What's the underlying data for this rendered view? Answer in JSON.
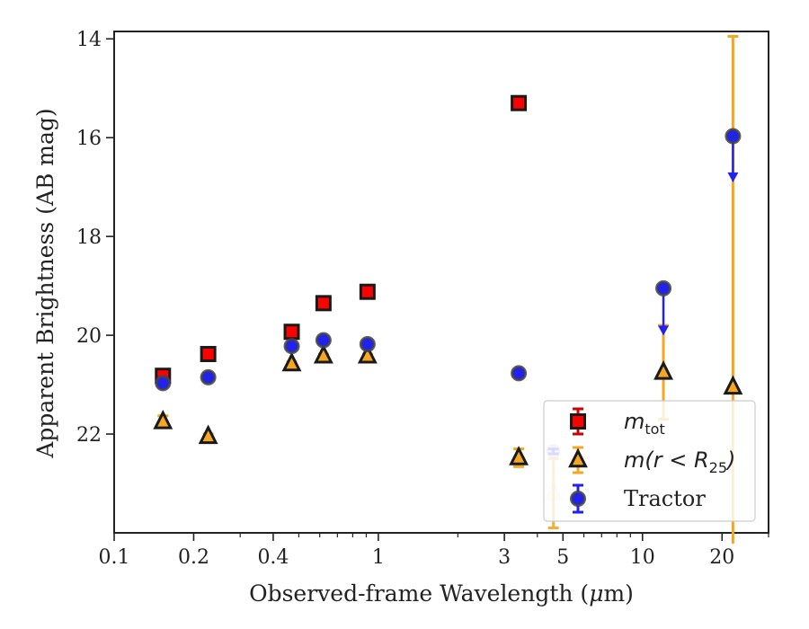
{
  "chart_data": {
    "type": "scatter",
    "xscale": "log",
    "yinverted": true,
    "xlabel": "Observed-frame Wavelength (μm)",
    "xlabel_parts": [
      "Observed-frame Wavelength (",
      "μ",
      "m)"
    ],
    "ylabel": "Apparent Brightness (AB mag)",
    "xlim": [
      0.1,
      30
    ],
    "ylim": [
      24.0,
      13.85
    ],
    "xticks": [
      {
        "value": 0.1,
        "label": "0.1"
      },
      {
        "value": 0.2,
        "label": "0.2"
      },
      {
        "value": 0.4,
        "label": "0.4"
      },
      {
        "value": 1,
        "label": "1"
      },
      {
        "value": 3,
        "label": "3"
      },
      {
        "value": 5,
        "label": "5"
      },
      {
        "value": 10,
        "label": "10"
      },
      {
        "value": 20,
        "label": "20"
      }
    ],
    "xminor": [
      0.3,
      0.5,
      0.6,
      0.7,
      0.8,
      0.9,
      2,
      4,
      6,
      7,
      8,
      9,
      30
    ],
    "yticks": [
      {
        "value": 14,
        "label": "14"
      },
      {
        "value": 16,
        "label": "16"
      },
      {
        "value": 18,
        "label": "18"
      },
      {
        "value": 20,
        "label": "20"
      },
      {
        "value": 22,
        "label": "22"
      }
    ],
    "series": [
      {
        "name": "m_tot",
        "marker": "square",
        "color": "#ff0000",
        "edge": "#1a1a1a",
        "points": [
          {
            "x": 0.153,
            "y": 20.82,
            "err": 0.08
          },
          {
            "x": 0.227,
            "y": 20.38,
            "err": 0.04
          },
          {
            "x": 0.47,
            "y": 19.93,
            "err": 0.03
          },
          {
            "x": 0.62,
            "y": 19.35,
            "err": 0.03
          },
          {
            "x": 0.91,
            "y": 19.12,
            "err": 0.03
          },
          {
            "x": 3.4,
            "y": 15.3,
            "err": 0.03
          }
        ]
      },
      {
        "name": "m(r<R25)",
        "marker": "triangle",
        "color": "#f5a623",
        "edge": "#1a1a1a",
        "points": [
          {
            "x": 0.153,
            "y": 21.75,
            "err": 0.12
          },
          {
            "x": 0.227,
            "y": 22.05,
            "err": 0.05
          },
          {
            "x": 0.47,
            "y": 20.58,
            "err": 0.04
          },
          {
            "x": 0.62,
            "y": 20.42,
            "err": 0.04
          },
          {
            "x": 0.91,
            "y": 20.42,
            "err": 0.04
          },
          {
            "x": 3.4,
            "y": 22.48,
            "err": 0.18
          },
          {
            "x": 4.6,
            "y": 23.2,
            "err": 0.7,
            "faded": true
          },
          {
            "x": 12.0,
            "y": 20.75,
            "err": 0.95
          },
          {
            "x": 22.0,
            "y": 21.05,
            "err": 7.1
          }
        ]
      },
      {
        "name": "Tractor",
        "marker": "circle",
        "color": "#2222ee",
        "edge": "#444444",
        "points": [
          {
            "x": 0.153,
            "y": 20.97,
            "err": 0.05
          },
          {
            "x": 0.227,
            "y": 20.85,
            "err": 0.05
          },
          {
            "x": 0.47,
            "y": 20.22,
            "err": 0.04
          },
          {
            "x": 0.62,
            "y": 20.1,
            "err": 0.04
          },
          {
            "x": 0.91,
            "y": 20.18,
            "err": 0.04
          },
          {
            "x": 3.4,
            "y": 20.77,
            "err": 0.04
          },
          {
            "x": 4.6,
            "y": 22.35,
            "err": 0.05,
            "faded": true
          },
          {
            "x": 12.0,
            "y": 19.05,
            "uplim": true,
            "arrow_to": 19.95
          },
          {
            "x": 22.0,
            "y": 15.97,
            "uplim": true,
            "arrow_to": 16.85
          }
        ]
      }
    ],
    "legend": {
      "position": "lower-right",
      "entries": [
        {
          "series": "m_tot",
          "label_main": "m",
          "label_sub": "tot"
        },
        {
          "series": "m(r<R25)",
          "label_main": "m(r < R",
          "label_sub": "25",
          "label_tail": ")"
        },
        {
          "series": "Tractor",
          "label_main": "Tractor"
        }
      ]
    }
  }
}
